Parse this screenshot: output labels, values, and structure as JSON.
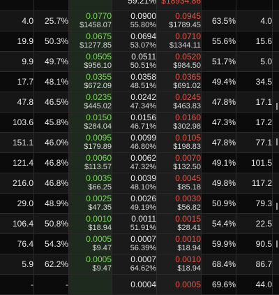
{
  "rows": [
    {
      "a": "",
      "b": "",
      "bid": "",
      "bid_sub": "",
      "mid": "59.21%",
      "mid_sub": "",
      "ask": "$18934.86",
      "ask_sub": "",
      "c": "",
      "d": ""
    },
    {
      "a": "4.0",
      "b": "25.7%",
      "bid": "0.0770",
      "bid_sub": "$1458.07",
      "mid": "0.0900",
      "mid_sub": "55.80%",
      "ask": "0.0945",
      "ask_sub": "$1789.45",
      "c": "63.5%",
      "d": "4.0"
    },
    {
      "a": "19.9",
      "b": "50.3%",
      "bid": "0.0675",
      "bid_sub": "$1277.85",
      "mid": "0.0694",
      "mid_sub": "53.07%",
      "ask": "0.0710",
      "ask_sub": "$1344.11",
      "c": "55.6%",
      "d": "15.6"
    },
    {
      "a": "9.9",
      "b": "49.7%",
      "bid": "0.0505",
      "bid_sub": "$956.10",
      "mid": "0.0511",
      "mid_sub": "50.51%",
      "ask": "0.0520",
      "ask_sub": "$984.50",
      "c": "51.7%",
      "d": "5.0"
    },
    {
      "a": "17.7",
      "b": "48.1%",
      "bid": "0.0355",
      "bid_sub": "$672.09",
      "mid": "0.0358",
      "mid_sub": "48.51%",
      "ask": "0.0365",
      "ask_sub": "$691.02",
      "c": "49.4%",
      "d": "34.5"
    },
    {
      "a": "47.8",
      "b": "46.5%",
      "bid": "0.0235",
      "bid_sub": "$445.02",
      "mid": "0.0242",
      "mid_sub": "47.34%",
      "ask": "0.0245",
      "ask_sub": "$463.83",
      "c": "47.8%",
      "d": "17.1"
    },
    {
      "a": "103.6",
      "b": "45.8%",
      "bid": "0.0150",
      "bid_sub": "$284.04",
      "mid": "0.0156",
      "mid_sub": "46.71%",
      "ask": "0.0160",
      "ask_sub": "$302.98",
      "c": "47.3%",
      "d": "17.2"
    },
    {
      "a": "151.1",
      "b": "46.0%",
      "bid": "0.0095",
      "bid_sub": "$179.89",
      "mid": "0.0099",
      "mid_sub": "46.80%",
      "ask": "0.0105",
      "ask_sub": "$198.83",
      "c": "47.8%",
      "d": "77.1"
    },
    {
      "a": "121.4",
      "b": "46.8%",
      "bid": "0.0060",
      "bid_sub": "$113.57",
      "mid": "0.0062",
      "mid_sub": "47.32%",
      "ask": "0.0070",
      "ask_sub": "$132.50",
      "c": "49.1%",
      "d": "101.5"
    },
    {
      "a": "216.0",
      "b": "46.8%",
      "bid": "0.0035",
      "bid_sub": "$66.25",
      "mid": "0.0039",
      "mid_sub": "48.10%",
      "ask": "0.0045",
      "ask_sub": "$85.18",
      "c": "49.8%",
      "d": "117.2"
    },
    {
      "a": "29.0",
      "b": "48.9%",
      "bid": "0.0025",
      "bid_sub": "$47.35",
      "mid": "0.0026",
      "mid_sub": "49.19%",
      "ask": "0.0030",
      "ask_sub": "$56.82",
      "c": "50.9%",
      "d": "79.3"
    },
    {
      "a": "106.4",
      "b": "50.8%",
      "bid": "0.0010",
      "bid_sub": "$18.94",
      "mid": "0.0011",
      "mid_sub": "51.91%",
      "ask": "0.0015",
      "ask_sub": "$28.41",
      "c": "54.4%",
      "d": "22.5"
    },
    {
      "a": "76.4",
      "b": "54.3%",
      "bid": "0.0005",
      "bid_sub": "$9.47",
      "mid": "0.0007",
      "mid_sub": "56.39%",
      "ask": "0.0010",
      "ask_sub": "$18.94",
      "c": "59.9%",
      "d": "90.5"
    },
    {
      "a": "5.9",
      "b": "62.2%",
      "bid": "0.0005",
      "bid_sub": "$9.47",
      "mid": "0.0007",
      "mid_sub": "64.62%",
      "ask": "0.0010",
      "ask_sub": "$18.94",
      "c": "68.4%",
      "d": "86.7"
    },
    {
      "a": "-",
      "b": "-",
      "bid": "",
      "bid_sub": "",
      "mid": "0.0004",
      "mid_sub": "",
      "ask": "0.0005",
      "ask_sub": "",
      "c": "69.6%",
      "d": "44.0"
    }
  ],
  "colors": {
    "bid": "#7dd65a",
    "ask": "#e0574a"
  }
}
